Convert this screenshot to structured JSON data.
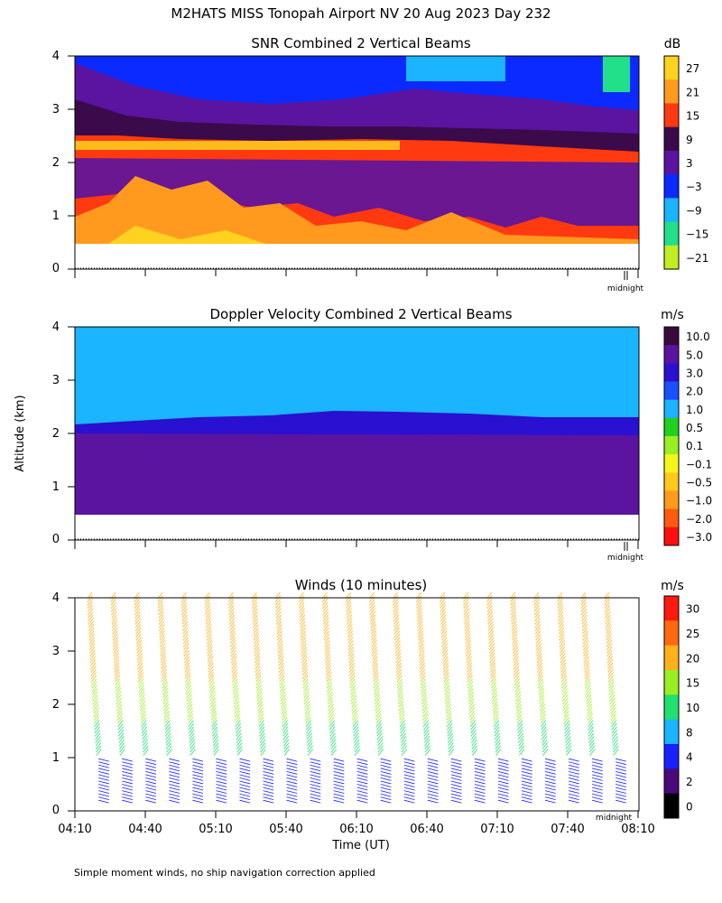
{
  "figure": {
    "title": "M2HATS MISS Tonopah Airport NV  20 Aug 2023 Day 232",
    "ylabel": "Altitude (km)",
    "xlabel": "Time (UT)",
    "footnote": "Simple moment winds, no ship navigation correction applied",
    "midnight_label": "midnight"
  },
  "chart_data": [
    {
      "type": "heatmap",
      "title": "SNR Combined 2 Vertical Beams",
      "ylim": [
        0,
        4
      ],
      "yticks": [
        "0",
        "1",
        "2",
        "3",
        "4"
      ],
      "colorbar": {
        "unit": "dB",
        "labels": [
          "27",
          "21",
          "15",
          "9",
          "3",
          "−3",
          "−9",
          "−15",
          "−21"
        ],
        "colors": [
          "#ffd21f",
          "#ff9a1f",
          "#ff3a10",
          "#3a0a4a",
          "#5a14a0",
          "#0a2aff",
          "#1ab4ff",
          "#22e08a",
          "#bfee22"
        ]
      },
      "layers": [
        {
          "level_db": 21,
          "color": "#ff9a1f",
          "alt_range_km": [
            0.5,
            1.8
          ]
        },
        {
          "level_db": 15,
          "color": "#ff3a10",
          "alt_range_km": [
            0.5,
            2.3
          ]
        },
        {
          "level_db": 27,
          "color": "#ffd21f",
          "alt_range_km": [
            2.1,
            2.3
          ]
        },
        {
          "level_db": 9,
          "color": "#3a0a4a",
          "alt_range_km": [
            2.3,
            3.2
          ]
        },
        {
          "level_db": 3,
          "color": "#5a14a0",
          "alt_range_km": [
            2.9,
            3.5
          ]
        },
        {
          "level_db": -3,
          "color": "#0a2aff",
          "alt_range_km": [
            3.3,
            4.0
          ]
        }
      ]
    },
    {
      "type": "heatmap",
      "title": "Doppler Velocity Combined 2 Vertical Beams",
      "ylim": [
        0,
        4
      ],
      "yticks": [
        "0",
        "1",
        "2",
        "3",
        "4"
      ],
      "colorbar": {
        "unit": "m/s",
        "labels": [
          "10.0",
          "5.0",
          "3.0",
          "2.0",
          "1.0",
          "0.5",
          "0.1",
          "−0.1",
          "−0.5",
          "−1.0",
          "−2.0",
          "−3.0"
        ],
        "colors": [
          "#3a0a3a",
          "#5a14a0",
          "#2a10d0",
          "#1a50ff",
          "#1ab4ff",
          "#22d020",
          "#9aee22",
          "#f5f51a",
          "#ffc81a",
          "#ff9a1a",
          "#ff5a10",
          "#ff1010"
        ]
      },
      "layers": [
        {
          "level_ms": 1.0,
          "color": "#1ab4ff",
          "alt_range_km": [
            2.3,
            4.0
          ]
        },
        {
          "level_ms": 3.0,
          "color": "#2a10d0",
          "alt_range_km": [
            2.1,
            2.3
          ]
        },
        {
          "level_ms": 5.0,
          "color": "#5a14a0",
          "alt_range_km": [
            0.5,
            2.1
          ]
        }
      ]
    },
    {
      "type": "scatter",
      "title": "Winds (10 minutes)",
      "ylim": [
        0,
        4
      ],
      "yticks": [
        "0",
        "1",
        "2",
        "3",
        "4"
      ],
      "xlim": [
        "04:10",
        "08:10"
      ],
      "xticks": [
        "04:10",
        "04:40",
        "05:10",
        "05:40",
        "06:10",
        "06:40",
        "07:10",
        "07:40",
        "08:10"
      ],
      "colorbar": {
        "unit": "m/s",
        "labels": [
          "30",
          "25",
          "20",
          "15",
          "10",
          "8",
          "4",
          "2",
          "0"
        ],
        "colors": [
          "#ff1a10",
          "#ff6a10",
          "#ffb01a",
          "#9aee22",
          "#22e070",
          "#1ab4ff",
          "#1a20ff",
          "#4a0a7a",
          "#000000"
        ]
      },
      "profile_times": [
        "04:17",
        "04:27",
        "04:37",
        "04:47",
        "04:57",
        "05:07",
        "05:17",
        "05:27",
        "05:37",
        "05:47",
        "05:57",
        "06:07",
        "06:17",
        "06:27",
        "06:37",
        "06:47",
        "06:57",
        "07:07",
        "07:17",
        "07:27",
        "07:37",
        "07:47",
        "07:57"
      ],
      "wind_speed_ms_by_alt": [
        {
          "alt_range_km": [
            0.2,
            1.0
          ],
          "speed_ms": 4
        },
        {
          "alt_range_km": [
            1.0,
            1.6
          ],
          "speed_ms": 10
        },
        {
          "alt_range_km": [
            1.6,
            2.4
          ],
          "speed_ms": 15
        },
        {
          "alt_range_km": [
            2.4,
            4.0
          ],
          "speed_ms": 20
        }
      ]
    }
  ]
}
